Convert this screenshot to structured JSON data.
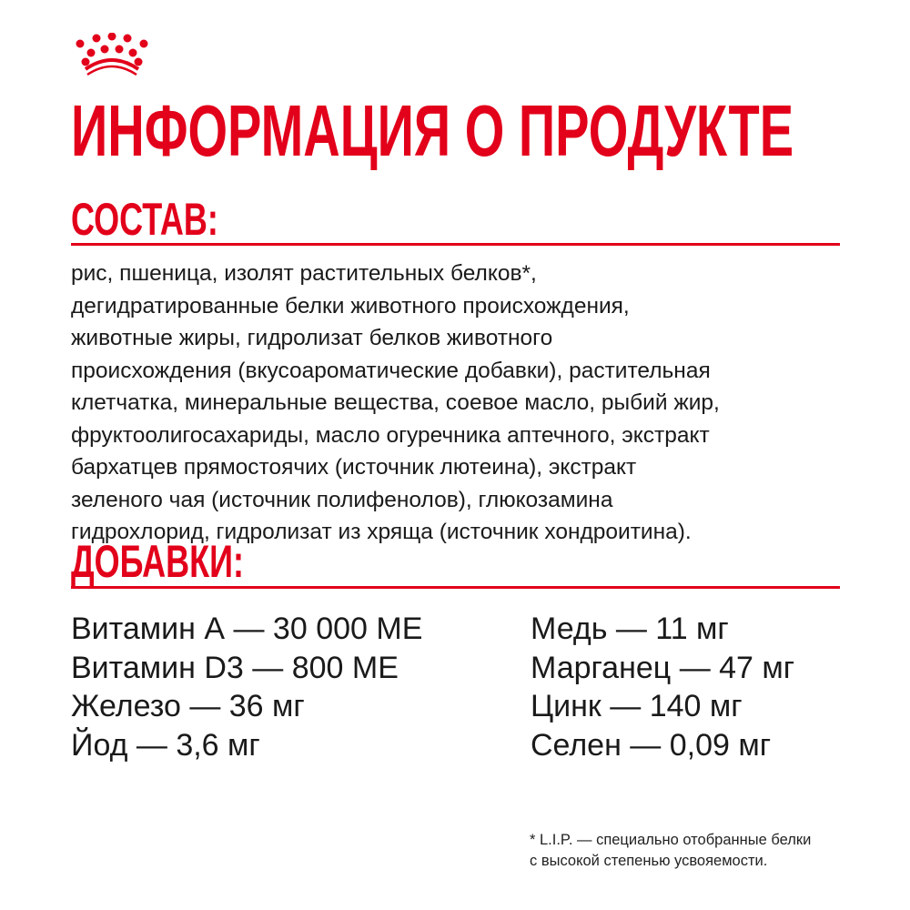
{
  "brand": {
    "logo": "crown-icon",
    "color": "#e2001a"
  },
  "title": "ИНФОРМАЦИЯ О ПРОДУКТЕ",
  "composition": {
    "heading": "СОСТАВ:",
    "lines": [
      "рис, пшеница, изолят растительных белков*,",
      "дегидратированные белки животного происхождения,",
      "животные жиры, гидролизат белков животного",
      "происхождения (вкусоароматические добавки), растительная",
      "клетчатка, минеральные вещества, соевое масло, рыбий жир,",
      "фруктоолигосахариды, масло огуречника аптечного, экстракт",
      "бархатцев прямостоячих (источник лютеина), экстракт",
      "зеленого чая (источник полифенолов), глюкозамина",
      "гидрохлорид, гидролизат из хряща (источник хондроитина)."
    ]
  },
  "additives": {
    "heading": "ДОБАВКИ:",
    "left": [
      "Витамин А — 30 000 МЕ",
      "Витамин D3 — 800 МЕ",
      "Железо — 36 мг",
      "Йод — 3,6 мг"
    ],
    "right": [
      "Медь — 11 мг",
      "Марганец — 47 мг",
      "Цинк — 140 мг",
      "Селен — 0,09 мг"
    ]
  },
  "footnote": [
    "* L.I.P. — специально отобранные белки",
    "с высокой степенью усвояемости."
  ]
}
